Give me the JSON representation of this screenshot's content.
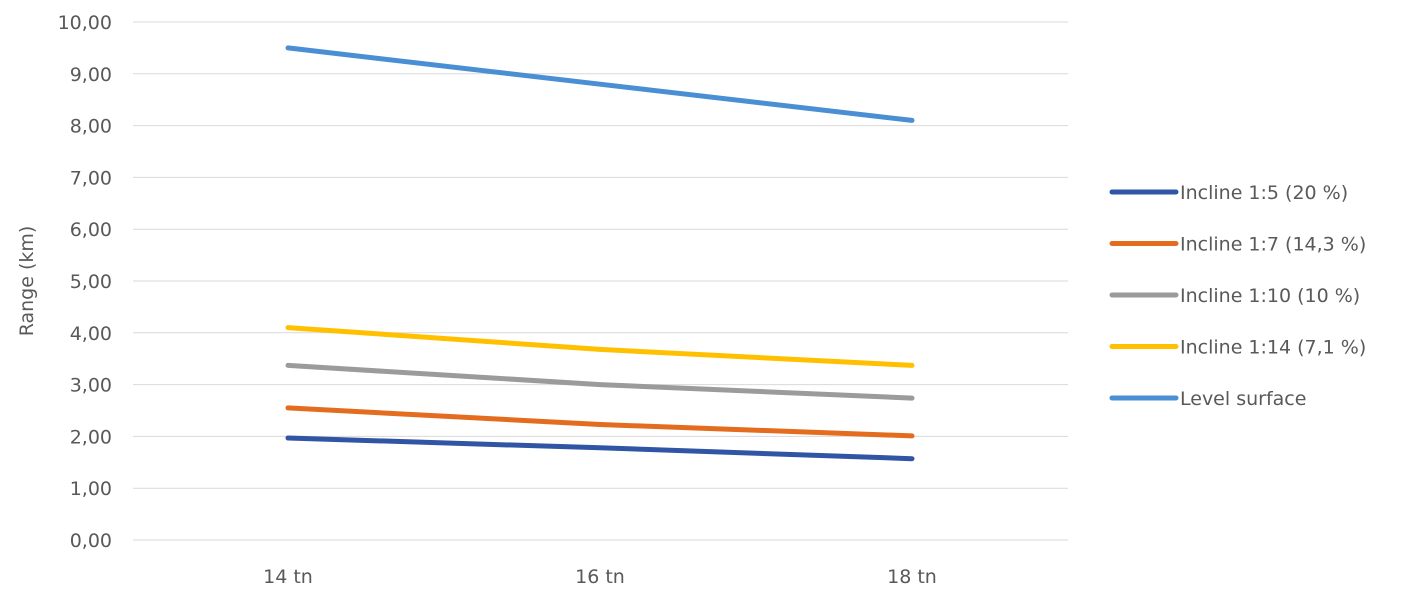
{
  "chart_data": {
    "type": "line",
    "title": "",
    "xlabel": "",
    "ylabel": "Range (km)",
    "categories": [
      "14 tn",
      "16 tn",
      "18 tn"
    ],
    "ylim": [
      0,
      10
    ],
    "ytick_step": 1,
    "ytick_labels": [
      "0,00",
      "1,00",
      "2,00",
      "3,00",
      "4,00",
      "5,00",
      "6,00",
      "7,00",
      "8,00",
      "9,00",
      "10,00"
    ],
    "grid": true,
    "legend_position": "right",
    "series": [
      {
        "name": "Incline 1:5 (20 %)",
        "color": "#2f55a4",
        "values": [
          1.97,
          1.78,
          1.57
        ]
      },
      {
        "name": "Incline 1:7 (14,3 %)",
        "color": "#e36c1f",
        "values": [
          2.55,
          2.23,
          2.01
        ]
      },
      {
        "name": "Incline 1:10 (10 %)",
        "color": "#9b9b9b",
        "values": [
          3.37,
          3.0,
          2.74
        ]
      },
      {
        "name": "Incline 1:14 (7,1 %)",
        "color": "#ffc000",
        "values": [
          4.1,
          3.68,
          3.37
        ]
      },
      {
        "name": "Level surface",
        "color": "#4a8fd3",
        "values": [
          9.5,
          8.8,
          8.1
        ]
      }
    ]
  }
}
